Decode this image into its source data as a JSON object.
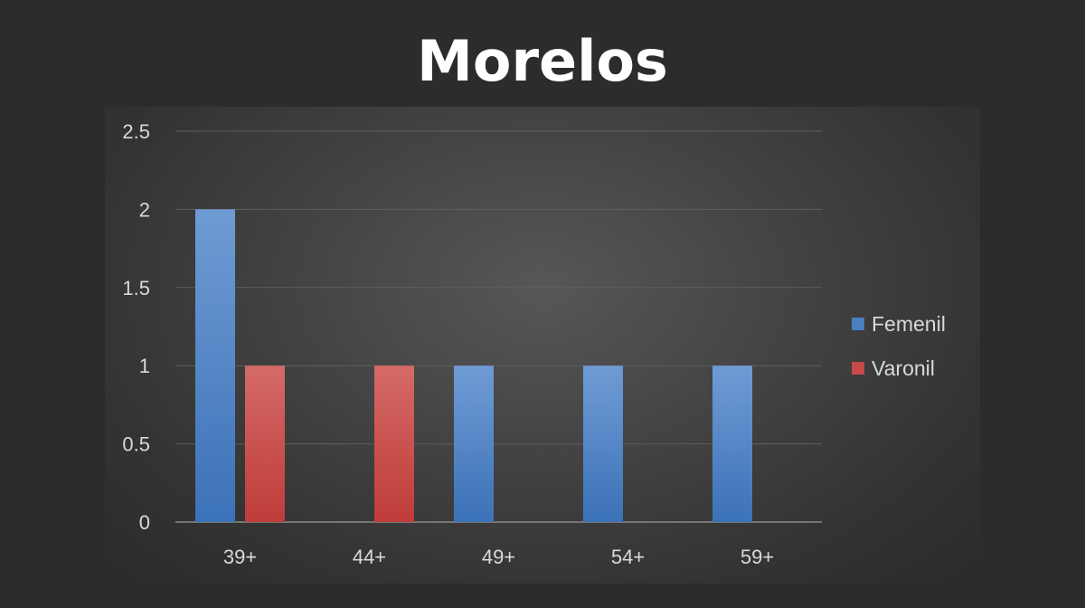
{
  "chart_data": {
    "type": "bar",
    "title": "Morelos",
    "xlabel": "",
    "ylabel": "",
    "categories": [
      "39+",
      "44+",
      "49+",
      "54+",
      "59+"
    ],
    "series": [
      {
        "name": "Femenil",
        "values": [
          2,
          0,
          1,
          1,
          1
        ],
        "color": "#4a7fc1"
      },
      {
        "name": "Varonil",
        "values": [
          1,
          1,
          0,
          0,
          0
        ],
        "color": "#c84a47"
      }
    ],
    "ylim": [
      0,
      2.5
    ],
    "yticks": [
      "0",
      "0.5",
      "1",
      "1.5",
      "2",
      "2.5"
    ],
    "grid": true,
    "legend_position": "right",
    "background": "#2c2c2c"
  }
}
